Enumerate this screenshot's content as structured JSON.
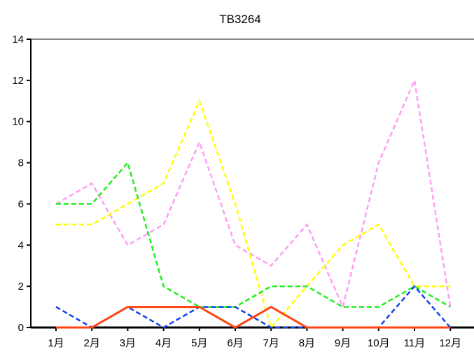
{
  "chart_data": {
    "type": "line",
    "title": "TB3264",
    "xlabel": "",
    "ylabel": "",
    "categories": [
      "1月",
      "2月",
      "3月",
      "4月",
      "5月",
      "6月",
      "7月",
      "8月",
      "9月",
      "10月",
      "11月",
      "12月"
    ],
    "ylim": [
      0,
      14
    ],
    "yticks": [
      0,
      2,
      4,
      6,
      8,
      10,
      12,
      14
    ],
    "grid": false,
    "legend": "none",
    "series": [
      {
        "color": "#ff9ff3",
        "dash": "dashed",
        "values": [
          6,
          7,
          4,
          5,
          9,
          4,
          3,
          5,
          1,
          8,
          12,
          1
        ]
      },
      {
        "color": "#ffff00",
        "dash": "dashed",
        "values": [
          5,
          5,
          6,
          7,
          11,
          6,
          0,
          2,
          4,
          5,
          2,
          2
        ]
      },
      {
        "color": "#22ee22",
        "dash": "dashed",
        "values": [
          6,
          6,
          8,
          2,
          1,
          1,
          2,
          2,
          1,
          1,
          2,
          1
        ]
      },
      {
        "color": "#1144ee",
        "dash": "dashed",
        "values": [
          1,
          0,
          1,
          0,
          1,
          1,
          0,
          0,
          0,
          0,
          2,
          0
        ]
      },
      {
        "color": "#ff4411",
        "dash": "solid",
        "values": [
          0,
          0,
          1,
          1,
          1,
          0,
          1,
          0,
          0,
          0,
          0,
          0
        ]
      }
    ]
  }
}
